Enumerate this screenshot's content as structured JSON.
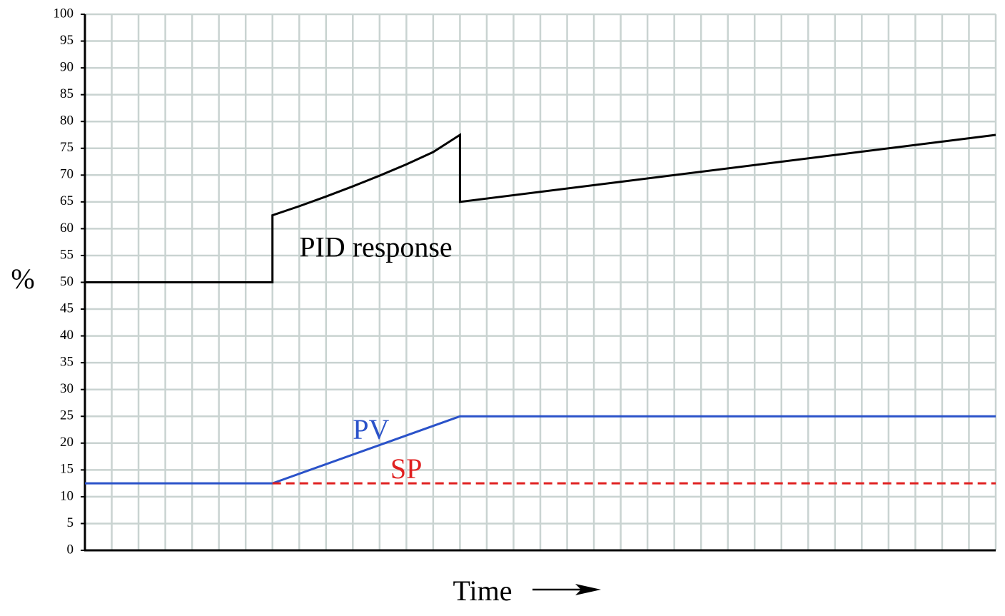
{
  "chart_data": {
    "type": "line",
    "title": "",
    "xlabel": "Time",
    "ylabel": "%",
    "xlim": [
      0,
      34
    ],
    "ylim": [
      0,
      100
    ],
    "y_ticks": [
      0,
      5,
      10,
      15,
      20,
      25,
      30,
      35,
      40,
      45,
      50,
      55,
      60,
      65,
      70,
      75,
      80,
      85,
      90,
      95,
      100
    ],
    "x_grid_step": 1,
    "y_grid_step": 5,
    "grid": true,
    "axis_arrow": "right",
    "series": [
      {
        "name": "PID response",
        "color": "#000000",
        "style": "solid",
        "points": [
          [
            0,
            50
          ],
          [
            7,
            50
          ],
          [
            7,
            62.5
          ],
          [
            8,
            64.2
          ],
          [
            9,
            66
          ],
          [
            10,
            67.9
          ],
          [
            11,
            69.9
          ],
          [
            12,
            72
          ],
          [
            13,
            74.3
          ],
          [
            14,
            77.5
          ],
          [
            14,
            65
          ],
          [
            34,
            77.5
          ]
        ]
      },
      {
        "name": "PV",
        "color": "#2a52c9",
        "style": "solid",
        "points": [
          [
            0,
            12.5
          ],
          [
            7,
            12.5
          ],
          [
            14,
            25
          ],
          [
            34,
            25
          ]
        ]
      },
      {
        "name": "SP",
        "color": "#e02020",
        "style": "dashed",
        "points": [
          [
            7,
            12.5
          ],
          [
            34,
            12.5
          ]
        ]
      }
    ],
    "annotations": [
      {
        "text": "PID response",
        "x": 8,
        "y": 56,
        "color": "#000000"
      },
      {
        "text": "PV",
        "x": 10,
        "y": 22,
        "color": "#2a52c9"
      },
      {
        "text": "SP",
        "x": 11.4,
        "y": 14.7,
        "color": "#e02020"
      }
    ]
  }
}
